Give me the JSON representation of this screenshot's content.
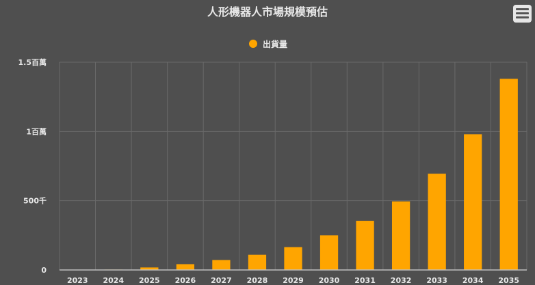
{
  "chart_data": {
    "type": "bar",
    "title": "人形機器人市場規模預估",
    "categories": [
      "2023",
      "2024",
      "2025",
      "2026",
      "2027",
      "2028",
      "2029",
      "2030",
      "2031",
      "2032",
      "2033",
      "2034",
      "2035"
    ],
    "series": [
      {
        "name": "出貨量",
        "values": [
          0,
          3000,
          18000,
          42000,
          72000,
          110000,
          165000,
          250000,
          355000,
          495000,
          695000,
          980000,
          1380000
        ]
      }
    ],
    "ylim": [
      0,
      1500000
    ],
    "yticks": [
      0,
      500000,
      1000000,
      1500000
    ],
    "ytick_labels": [
      "0",
      "500千",
      "1百萬",
      "1.5百萬"
    ],
    "grid": true,
    "legend_position": "top"
  },
  "colors": {
    "background": "#4f4f4f",
    "bar": "#ffa500",
    "grid": "#6a6a6a",
    "text": "#e8e8e8"
  },
  "icons": {
    "menu": "hamburger-menu-icon"
  }
}
